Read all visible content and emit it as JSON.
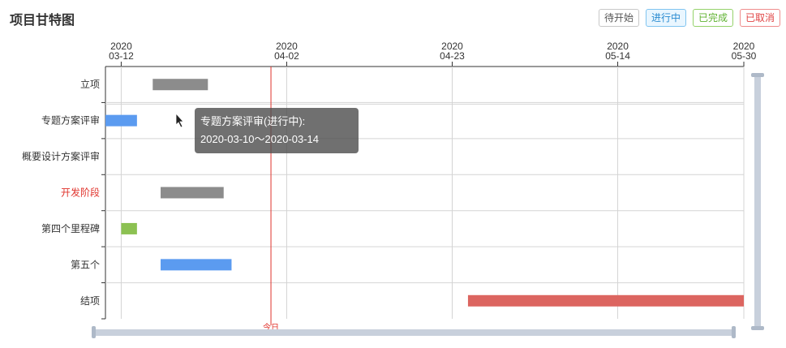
{
  "header": {
    "title": "项目甘特图"
  },
  "legend": [
    {
      "label": "待开始",
      "border": "#c8c8c8",
      "color": "#555555",
      "bg": "#ffffff"
    },
    {
      "label": "进行中",
      "border": "#80c4f0",
      "color": "#2a8bd0",
      "bg": "#e9f6ff"
    },
    {
      "label": "已完成",
      "border": "#95d26a",
      "color": "#5fb230",
      "bg": "#ffffff"
    },
    {
      "label": "已取消",
      "border": "#ef8c8c",
      "color": "#e04444",
      "bg": "#ffffff"
    }
  ],
  "status_colors": {
    "pending": "#8c8c8c",
    "in_progress": "#5b9bf0",
    "done": "#8cc152",
    "cancelled": "#dc6560"
  },
  "chart_data": {
    "type": "gantt",
    "x_axis_ticks": [
      {
        "year": "2020",
        "date": "03-12"
      },
      {
        "year": "2020",
        "date": "04-02"
      },
      {
        "year": "2020",
        "date": "04-23"
      },
      {
        "year": "2020",
        "date": "05-14"
      },
      {
        "year": "2020",
        "date": "05-30"
      }
    ],
    "xlim": [
      "2020-03-10",
      "2020-05-30"
    ],
    "today_date": "2020-03-31",
    "today_label": "今日",
    "tasks": [
      {
        "name": "立项",
        "start": "2020-03-16",
        "end": "2020-03-23",
        "status": "pending",
        "highlight": false
      },
      {
        "name": "专题方案评审",
        "start": "2020-03-10",
        "end": "2020-03-14",
        "status": "in_progress",
        "highlight": false
      },
      {
        "name": "概要设计方案评审",
        "start": null,
        "end": null,
        "status": "pending",
        "highlight": false
      },
      {
        "name": "开发阶段",
        "start": "2020-03-17",
        "end": "2020-03-25",
        "status": "pending",
        "highlight": true
      },
      {
        "name": "第四个里程碑",
        "start": "2020-03-12",
        "end": "2020-03-14",
        "status": "done",
        "highlight": false
      },
      {
        "name": "第五个",
        "start": "2020-03-17",
        "end": "2020-03-26",
        "status": "in_progress",
        "highlight": false
      },
      {
        "name": "结项",
        "start": "2020-04-25",
        "end": "2020-05-30",
        "status": "cancelled",
        "highlight": false
      }
    ]
  },
  "tooltip": {
    "line1": "专题方案评审(进行中):",
    "line2": "2020-03-10～2020-03-14"
  }
}
